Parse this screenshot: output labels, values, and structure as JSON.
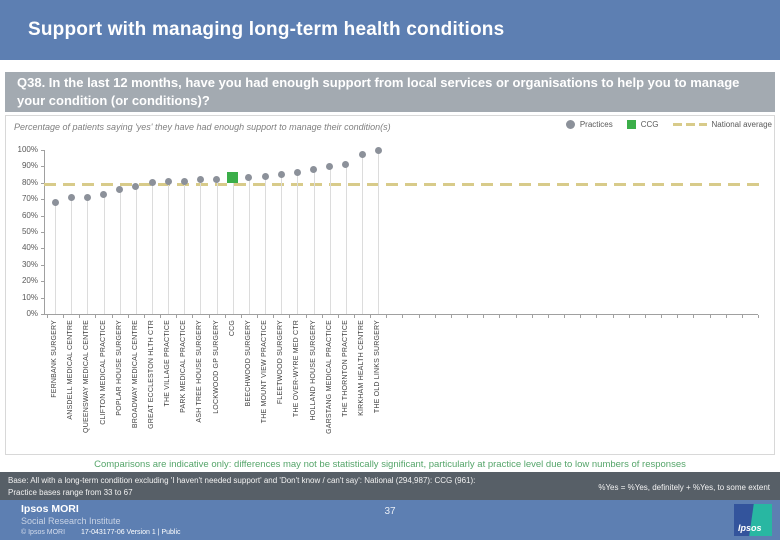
{
  "slide": {
    "title": "Support with managing long-term health conditions",
    "question": "Q38. In the last 12 months, have you had enough support from local services or organisations to help you to manage your condition (or conditions)?",
    "page_number": "37"
  },
  "chart": {
    "subtitle": "Percentage of patients saying 'yes' they have had enough support to manage their condition(s)",
    "legend": [
      {
        "label": "Practices",
        "type": "dot",
        "color": "#8c919a"
      },
      {
        "label": "CCG",
        "type": "square",
        "color": "#3bae49"
      },
      {
        "label": "National average",
        "type": "dash",
        "color": "#d8cb8a"
      }
    ]
  },
  "chart_data": {
    "type": "scatter",
    "title": "Percentage of patients saying 'yes' they have had enough support to manage their condition(s)",
    "categories": [
      "FERNBANK SURGERY",
      "ANSDELL MEDICAL CENTRE",
      "QUEENSWAY MEDICAL CENTRE",
      "CLIFTON MEDICAL PRACTICE",
      "POPLAR HOUSE SURGERY",
      "BROADWAY MEDICAL CENTRE",
      "GREAT ECCLESTON HLTH CTR",
      "THE VILLAGE PRACTICE",
      "PARK MEDICAL PRACTICE",
      "ASH TREE HOUSE SURGERY",
      "LOCKWOOD GP SURGERY",
      "CCG",
      "BEECHWOOD SURGERY",
      "THE MOUNT VIEW PRACTICE",
      "FLEETWOOD SURGERY",
      "THE OVER-WYRE MED CTR",
      "HOLLAND HOUSE SURGERY",
      "GARSTANG MEDICAL PRACTICE",
      "THE THORNTON PRACTICE",
      "KIRKHAM HEALTH CENTRE",
      "THE OLD LINKS SURGERY"
    ],
    "values": [
      68,
      71,
      71,
      73,
      76,
      78,
      80,
      81,
      81,
      82,
      82,
      83,
      83,
      84,
      85,
      86,
      88,
      90,
      91,
      97,
      100
    ],
    "ccg_index": 11,
    "national_average": 79,
    "ylim": [
      0,
      100
    ],
    "yticks": [
      "0%",
      "10%",
      "20%",
      "30%",
      "40%",
      "50%",
      "60%",
      "70%",
      "80%",
      "90%",
      "100%"
    ],
    "colors": {
      "practice": "#8c919a",
      "ccg": "#3bae49",
      "national": "#d8cb8a"
    }
  },
  "footnotes": {
    "comparison": "Comparisons are indicative only: differences may not be statistically significant, particularly at practice level due to low numbers of responses",
    "base_line1": "Base: All with a long-term condition excluding 'I haven't needed support' and 'Don't know / can't say': National (294,987): CCG (961):",
    "base_line2": "Practice bases range from 33 to 67",
    "yes_definition": "%Yes = %Yes, definitely + %Yes, to some extent"
  },
  "footer": {
    "brand": "Ipsos MORI",
    "brand_sub": "Social Research Institute",
    "copyright": "© Ipsos MORI",
    "version": "17-043177-06 Version 1 | Public",
    "logo_text": "Ipsos"
  }
}
